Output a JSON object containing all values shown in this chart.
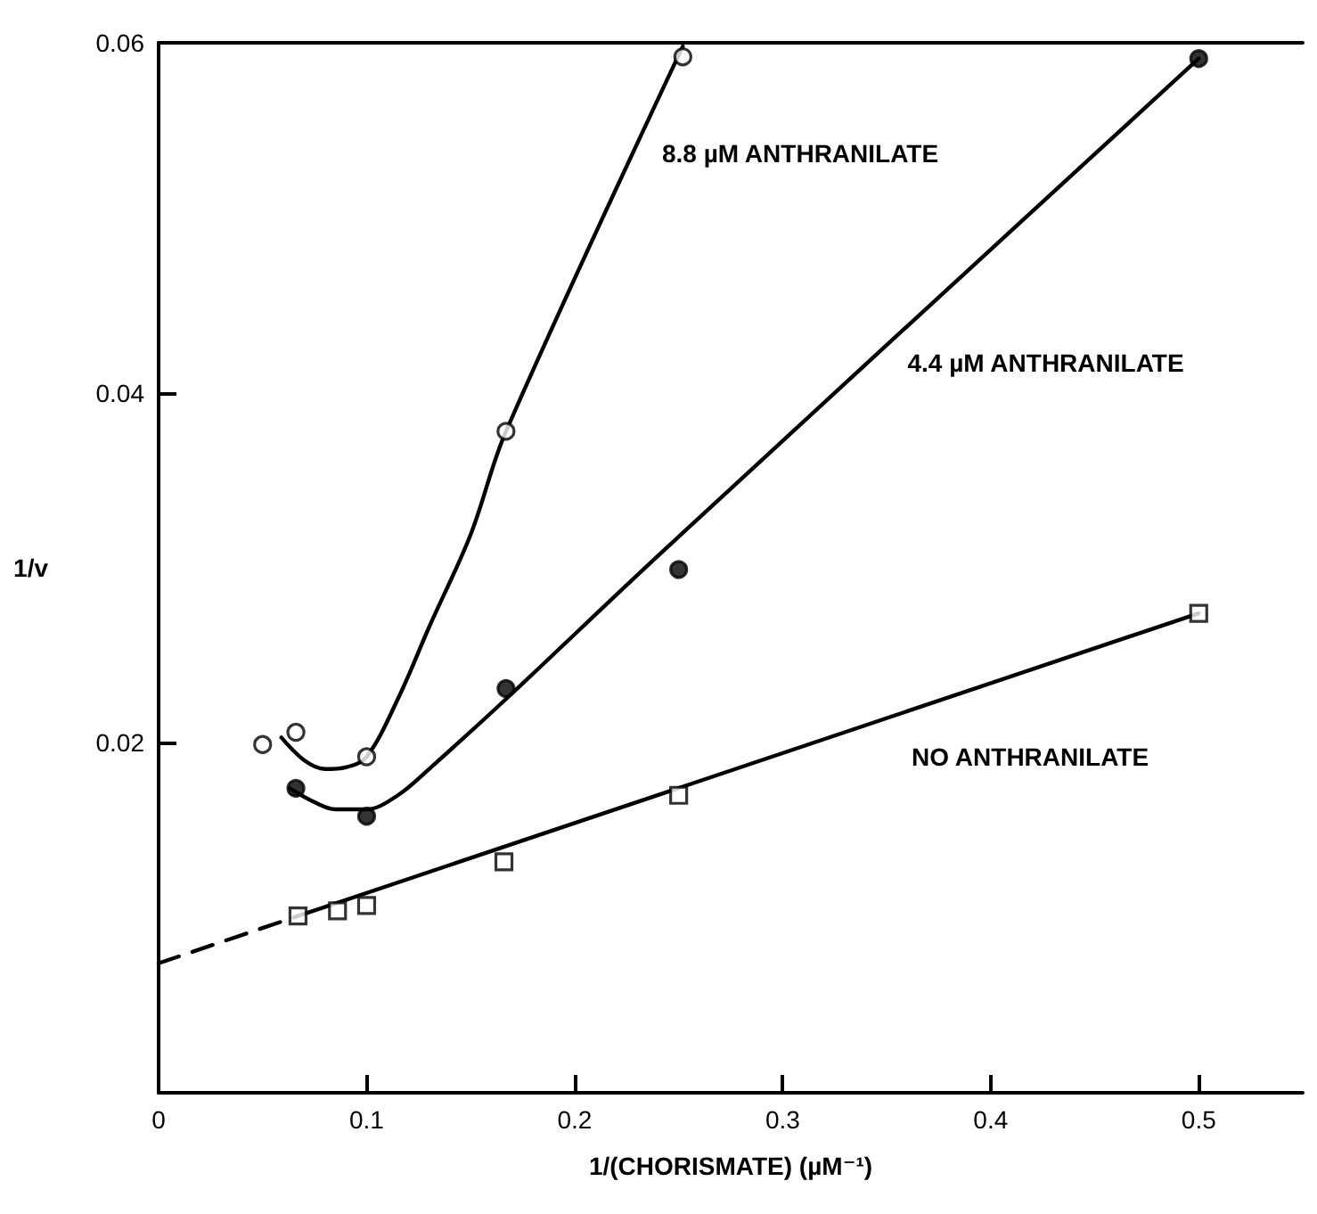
{
  "chart_data": {
    "type": "scatter",
    "xlabel": "1/(CHORISMATE) (µM⁻¹)",
    "ylabel": "1/v",
    "xlim": [
      0,
      0.55
    ],
    "xticks": [
      0,
      0.1,
      0.2,
      0.3,
      0.4,
      0.5
    ],
    "ylim": [
      0,
      0.06
    ],
    "yticks": [
      0.02,
      0.04,
      0.06
    ],
    "series": [
      {
        "marker": "circle",
        "color": "#ffffff",
        "x": [
          0.05,
          0.066,
          0.1,
          0.167,
          0.252
        ],
        "values": [
          0.0199,
          0.0206,
          0.0192,
          0.0378,
          0.0592
        ]
      },
      {
        "marker": "circle",
        "color": "#000000",
        "x": [
          0.066,
          0.1,
          0.167,
          0.25,
          0.5
        ],
        "values": [
          0.0174,
          0.0158,
          0.0231,
          0.0299,
          0.0591
        ]
      },
      {
        "marker": "square",
        "color": "#ffffff",
        "x": [
          0.067,
          0.086,
          0.1,
          0.166,
          0.25,
          0.5
        ],
        "values": [
          0.0101,
          0.0104,
          0.0107,
          0.0132,
          0.017,
          0.0274
        ]
      },
      {
        "name": "8.8 µM ANTHRANILATE",
        "type": "line",
        "color": "#000000",
        "line_style": "solid",
        "x": [
          0.059,
          0.07,
          0.08,
          0.09,
          0.1,
          0.115,
          0.13,
          0.15,
          0.167,
          0.252
        ],
        "values": [
          0.0203,
          0.019,
          0.0185,
          0.0186,
          0.0192,
          0.0225,
          0.0266,
          0.0319,
          0.0378,
          0.0598
        ]
      },
      {
        "name": "4.4 µM ANTHRANILATE",
        "type": "line",
        "color": "#000000",
        "line_style": "solid",
        "x": [
          0.063,
          0.075,
          0.085,
          0.1,
          0.115,
          0.13,
          0.167,
          0.242,
          0.5
        ],
        "values": [
          0.0174,
          0.0166,
          0.0162,
          0.0162,
          0.017,
          0.0185,
          0.0225,
          0.0309,
          0.0591
        ]
      },
      {
        "name": "NO ANTHRANILATE",
        "type": "line",
        "color": "#000000",
        "line_style": "solid",
        "x": [
          0.067,
          0.5
        ],
        "values": [
          0.0101,
          0.0274
        ]
      },
      {
        "type": "line",
        "color": "#000000",
        "line_style": "dashed",
        "x": [
          0,
          0.067
        ],
        "values": [
          0.0074,
          0.0101
        ]
      }
    ]
  }
}
